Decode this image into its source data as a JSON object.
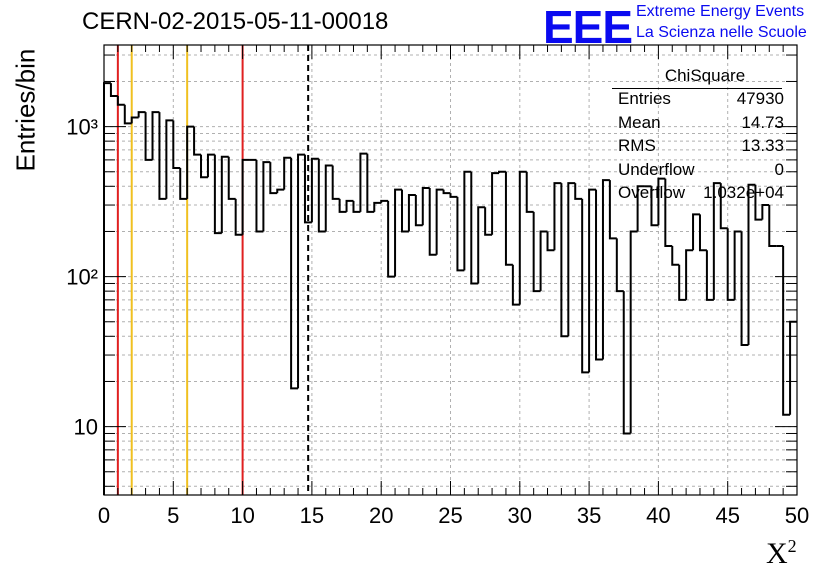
{
  "header": {
    "title": "CERN-02-2015-05-11-00018",
    "logo": "EEE",
    "org_line1": "Extreme Energy Events",
    "org_line2": "La Scienza nelle Scuole"
  },
  "stats_box": {
    "title": "ChiSquare",
    "rows": [
      {
        "label": "Entries",
        "value": "47930"
      },
      {
        "label": "Mean",
        "value": "14.73"
      },
      {
        "label": "RMS",
        "value": "13.33"
      },
      {
        "label": "Underflow",
        "value": "0"
      },
      {
        "label": "Overflow",
        "value": "1.032e+04"
      }
    ]
  },
  "chart_data": {
    "type": "histogram",
    "title": "CERN-02-2015-05-11-00018",
    "xlabel": "X",
    "xlabel_sup": "2",
    "ylabel": "Entries/bin",
    "y_scale": "log",
    "xlim": [
      0,
      50
    ],
    "ylim": [
      3.5,
      3500
    ],
    "grid": true,
    "bin_width": 0.5,
    "bin_values": [
      1950,
      1600,
      1400,
      1050,
      1150,
      1250,
      600,
      1250,
      330,
      1100,
      530,
      330,
      1000,
      650,
      460,
      650,
      195,
      630,
      330,
      190,
      600,
      600,
      200,
      580,
      360,
      380,
      620,
      18,
      650,
      230,
      610,
      200,
      550,
      330,
      270,
      320,
      270,
      660,
      270,
      310,
      320,
      100,
      380,
      200,
      350,
      220,
      390,
      140,
      380,
      360,
      340,
      110,
      500,
      90,
      290,
      190,
      490,
      500,
      120,
      65,
      500,
      270,
      80,
      200,
      150,
      420,
      40,
      420,
      330,
      23,
      380,
      28,
      440,
      180,
      80,
      9,
      200,
      400,
      400,
      220,
      450,
      160,
      120,
      70,
      150,
      260,
      150,
      70,
      420,
      210,
      70,
      200,
      35,
      410,
      240,
      300,
      160,
      160,
      12,
      50
    ],
    "xticks": [
      0,
      5,
      10,
      15,
      20,
      25,
      30,
      35,
      40,
      45,
      50
    ],
    "ytick_labels": [
      {
        "value": 10,
        "label": "10"
      },
      {
        "value": 100,
        "label": "10²"
      },
      {
        "value": 1000,
        "label": "10³"
      }
    ],
    "vertical_lines": [
      {
        "x": 1,
        "color": "#e02020",
        "style": "solid"
      },
      {
        "x": 2,
        "color": "#f0c020",
        "style": "solid"
      },
      {
        "x": 6,
        "color": "#f0c020",
        "style": "solid"
      },
      {
        "x": 10,
        "color": "#e02020",
        "style": "solid"
      },
      {
        "x": 14.73,
        "color": "#000000",
        "style": "dashed"
      }
    ]
  }
}
